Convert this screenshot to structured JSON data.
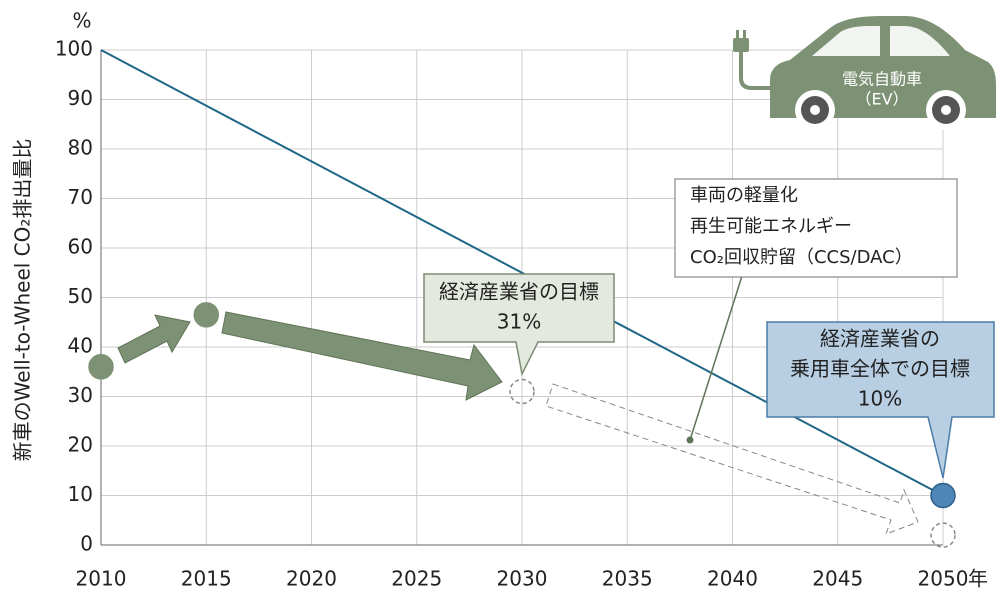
{
  "chart_data": {
    "type": "line",
    "y_label": "新車のWell-to-Wheel CO₂排出量比",
    "y_unit": "%",
    "x_unit": "年",
    "xlim": [
      2010,
      2050
    ],
    "xticks": [
      2010,
      2015,
      2020,
      2025,
      2030,
      2035,
      2040,
      2045,
      2050
    ],
    "ylim": [
      0,
      100
    ],
    "yticks": [
      0,
      10,
      20,
      30,
      40,
      50,
      60,
      70,
      80,
      90,
      100
    ],
    "grid": true,
    "series": [
      {
        "color": "#1f6688",
        "x": [
          2010,
          2050
        ],
        "values": [
          100,
          10
        ]
      }
    ],
    "markers": {
      "x": [
        2010,
        2015,
        2030,
        2050,
        2050
      ],
      "values": [
        36,
        46.5,
        31,
        10,
        2
      ],
      "fills": [
        "#7d9174",
        "#7d9174",
        "none",
        "#4f86b8",
        "none"
      ],
      "strokes": [
        "#7d9174",
        "#7d9174",
        "#888888",
        "#2d5f8a",
        "#888888"
      ],
      "dashed": [
        false,
        false,
        true,
        false,
        true
      ]
    },
    "annotations": {
      "meti_target": [
        "経済産業省の目標",
        "31%"
      ],
      "meti_fleet_target": [
        "経済産業省の",
        "乗用車全体での目標",
        "10%"
      ],
      "measures": [
        "車両の軽量化",
        "再生可能エネルギー",
        "CO₂回収貯留（CCS/DAC）"
      ],
      "ev": [
        "電気自動車",
        "（EV）"
      ]
    }
  }
}
